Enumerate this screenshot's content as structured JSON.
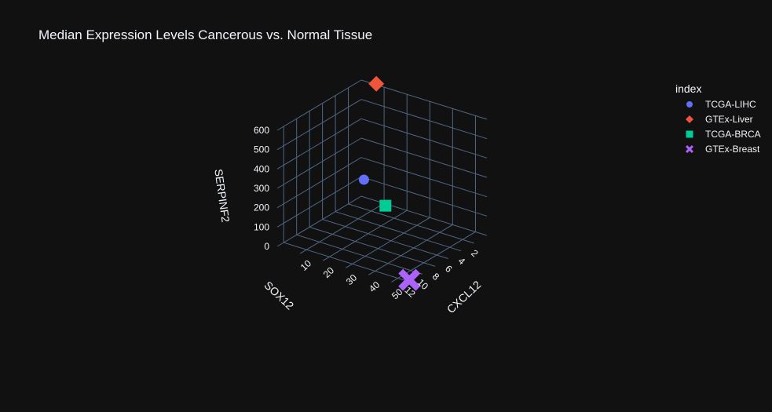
{
  "chart_data": {
    "type": "scatter3d",
    "title": "Median Expression Levels Cancerous vs. Normal Tissue",
    "axes": {
      "x": {
        "label": "CXCL12",
        "ticks": [
          10,
          20,
          30,
          40,
          50
        ],
        "range": [
          0,
          55
        ]
      },
      "y": {
        "label": "SOX12",
        "ticks": [
          2,
          4,
          6,
          8,
          10,
          12
        ],
        "range": [
          0,
          13
        ]
      },
      "z": {
        "label": "SERPINF2",
        "ticks": [
          0,
          100,
          200,
          300,
          400,
          500,
          600
        ],
        "range": [
          0,
          600
        ]
      }
    },
    "legend": {
      "title": "index",
      "placement": "top-right"
    },
    "series": [
      {
        "name": "TCGA-LIHC",
        "symbol": "circle",
        "color": "#636efa",
        "x": 4,
        "y": 1,
        "z": 120
      },
      {
        "name": "GTEx-Liver",
        "symbol": "diamond",
        "color": "#EF553B",
        "x": 8,
        "y": 0.5,
        "z": 620
      },
      {
        "name": "TCGA-BRCA",
        "symbol": "square",
        "color": "#00cc96",
        "x": 12,
        "y": 0.5,
        "z": 5
      },
      {
        "name": "GTEx-Breast",
        "symbol": "x",
        "color": "#ab63fa",
        "x": 55,
        "y": 12,
        "z": 10
      }
    ]
  }
}
